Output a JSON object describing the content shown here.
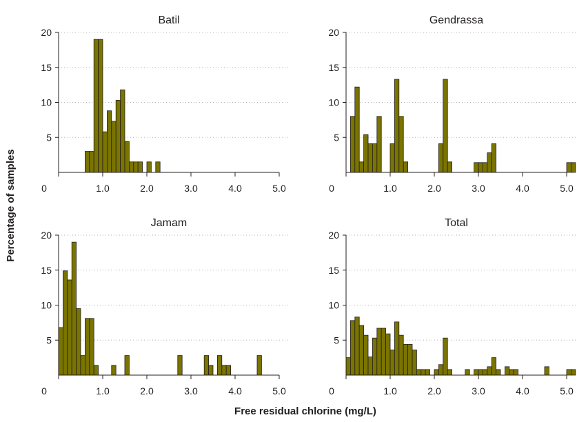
{
  "figure": {
    "ylabel": "Percentage of samples",
    "xlabel": "Free residual chlorine (mg/L)",
    "bar_color": "#7a7400"
  },
  "chart_data": [
    {
      "type": "bar",
      "title": "Batil",
      "xlim": [
        0,
        5.0
      ],
      "ylim": [
        0,
        20
      ],
      "xticks": [
        "0",
        "1.0",
        "2.0",
        "3.0",
        "4.0",
        "5.0"
      ],
      "yticks": [
        "5",
        "10",
        "15",
        "20"
      ],
      "grid": "horizontal dotted",
      "bins": [
        {
          "x": 0.6,
          "value": 3
        },
        {
          "x": 0.7,
          "value": 3
        },
        {
          "x": 0.8,
          "value": 19
        },
        {
          "x": 0.9,
          "value": 19
        },
        {
          "x": 1.0,
          "value": 5.8
        },
        {
          "x": 1.1,
          "value": 8.8
        },
        {
          "x": 1.2,
          "value": 7.3
        },
        {
          "x": 1.3,
          "value": 10.3
        },
        {
          "x": 1.4,
          "value": 11.8
        },
        {
          "x": 1.5,
          "value": 4.4
        },
        {
          "x": 1.6,
          "value": 1.5
        },
        {
          "x": 1.7,
          "value": 1.5
        },
        {
          "x": 1.8,
          "value": 1.5
        },
        {
          "x": 2.0,
          "value": 1.5
        },
        {
          "x": 2.2,
          "value": 1.5
        }
      ]
    },
    {
      "type": "bar",
      "title": "Gendrassa",
      "xlim": [
        0,
        5.0
      ],
      "ylim": [
        0,
        20
      ],
      "xticks": [
        "0",
        "1.0",
        "2.0",
        "3.0",
        "4.0",
        "5.0"
      ],
      "yticks": [
        "5",
        "10",
        "15",
        "20"
      ],
      "grid": "horizontal dotted",
      "bins": [
        {
          "x": 0.1,
          "value": 8
        },
        {
          "x": 0.2,
          "value": 12.2
        },
        {
          "x": 0.3,
          "value": 1.5
        },
        {
          "x": 0.4,
          "value": 5.4
        },
        {
          "x": 0.5,
          "value": 4.1
        },
        {
          "x": 0.6,
          "value": 4.1
        },
        {
          "x": 0.7,
          "value": 8
        },
        {
          "x": 1.0,
          "value": 4.1
        },
        {
          "x": 1.1,
          "value": 13.3
        },
        {
          "x": 1.2,
          "value": 8
        },
        {
          "x": 1.3,
          "value": 1.5
        },
        {
          "x": 2.1,
          "value": 4.1
        },
        {
          "x": 2.2,
          "value": 13.3
        },
        {
          "x": 2.3,
          "value": 1.5
        },
        {
          "x": 2.9,
          "value": 1.4
        },
        {
          "x": 3.0,
          "value": 1.4
        },
        {
          "x": 3.1,
          "value": 1.4
        },
        {
          "x": 3.2,
          "value": 2.8
        },
        {
          "x": 3.3,
          "value": 4.1
        },
        {
          "x": 5.0,
          "value": 1.4
        },
        {
          "x": 5.1,
          "value": 1.4
        }
      ]
    },
    {
      "type": "bar",
      "title": "Jamam",
      "xlim": [
        0,
        5.0
      ],
      "ylim": [
        0,
        20
      ],
      "xticks": [
        "0",
        "1.0",
        "2.0",
        "3.0",
        "4.0",
        "5.0"
      ],
      "yticks": [
        "5",
        "10",
        "15",
        "20"
      ],
      "grid": "horizontal dotted",
      "bins": [
        {
          "x": 0.0,
          "value": 6.8
        },
        {
          "x": 0.1,
          "value": 14.9
        },
        {
          "x": 0.2,
          "value": 13.6
        },
        {
          "x": 0.3,
          "value": 19
        },
        {
          "x": 0.4,
          "value": 9.5
        },
        {
          "x": 0.5,
          "value": 2.8
        },
        {
          "x": 0.6,
          "value": 8.1
        },
        {
          "x": 0.7,
          "value": 8.1
        },
        {
          "x": 0.8,
          "value": 1.4
        },
        {
          "x": 1.2,
          "value": 1.4
        },
        {
          "x": 1.5,
          "value": 2.8
        },
        {
          "x": 2.7,
          "value": 2.8
        },
        {
          "x": 3.3,
          "value": 2.8
        },
        {
          "x": 3.4,
          "value": 1.4
        },
        {
          "x": 3.6,
          "value": 2.8
        },
        {
          "x": 3.7,
          "value": 1.4
        },
        {
          "x": 3.8,
          "value": 1.4
        },
        {
          "x": 4.5,
          "value": 2.8
        }
      ]
    },
    {
      "type": "bar",
      "title": "Total",
      "xlim": [
        0,
        5.0
      ],
      "ylim": [
        0,
        20
      ],
      "xticks": [
        "0",
        "1.0",
        "2.0",
        "3.0",
        "4.0",
        "5.0"
      ],
      "yticks": [
        "5",
        "10",
        "15",
        "20"
      ],
      "grid": "horizontal dotted",
      "bins": [
        {
          "x": 0.0,
          "value": 2.5
        },
        {
          "x": 0.1,
          "value": 7.8
        },
        {
          "x": 0.2,
          "value": 8.3
        },
        {
          "x": 0.3,
          "value": 7.1
        },
        {
          "x": 0.4,
          "value": 5.7
        },
        {
          "x": 0.5,
          "value": 2.6
        },
        {
          "x": 0.6,
          "value": 5.3
        },
        {
          "x": 0.7,
          "value": 6.7
        },
        {
          "x": 0.8,
          "value": 6.7
        },
        {
          "x": 0.9,
          "value": 5.9
        },
        {
          "x": 1.0,
          "value": 3.6
        },
        {
          "x": 1.1,
          "value": 7.6
        },
        {
          "x": 1.2,
          "value": 5.7
        },
        {
          "x": 1.3,
          "value": 4.4
        },
        {
          "x": 1.4,
          "value": 4.4
        },
        {
          "x": 1.5,
          "value": 3.6
        },
        {
          "x": 1.6,
          "value": 0.8
        },
        {
          "x": 1.7,
          "value": 0.8
        },
        {
          "x": 1.8,
          "value": 0.8
        },
        {
          "x": 2.0,
          "value": 0.8
        },
        {
          "x": 2.1,
          "value": 1.5
        },
        {
          "x": 2.2,
          "value": 5.3
        },
        {
          "x": 2.3,
          "value": 0.8
        },
        {
          "x": 2.7,
          "value": 0.8
        },
        {
          "x": 2.9,
          "value": 0.8
        },
        {
          "x": 3.0,
          "value": 0.8
        },
        {
          "x": 3.1,
          "value": 0.8
        },
        {
          "x": 3.2,
          "value": 1.2
        },
        {
          "x": 3.3,
          "value": 2.5
        },
        {
          "x": 3.4,
          "value": 0.8
        },
        {
          "x": 3.6,
          "value": 1.2
        },
        {
          "x": 3.7,
          "value": 0.8
        },
        {
          "x": 3.8,
          "value": 0.8
        },
        {
          "x": 4.5,
          "value": 1.2
        },
        {
          "x": 5.0,
          "value": 0.8
        },
        {
          "x": 5.1,
          "value": 0.8
        }
      ]
    }
  ]
}
